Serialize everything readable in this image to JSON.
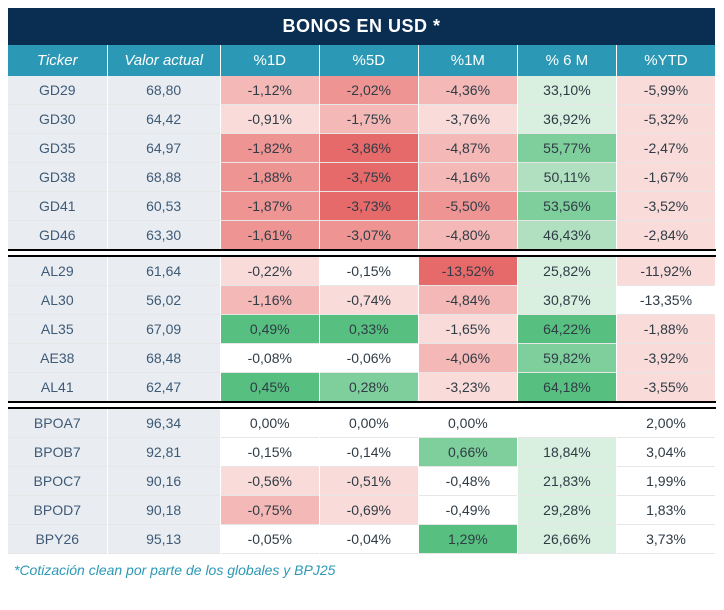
{
  "title": "BONOS EN USD *",
  "footnote": "*Cotización clean por parte de los globales y BPJ25",
  "columns": [
    "Ticker",
    "Valor actual",
    "%1D",
    "%5D",
    "%1M",
    "% 6 M",
    "%YTD"
  ],
  "label_bg": "#e9edf2",
  "label_color": "#3e5a76",
  "title_bg": "#0a2d52",
  "head_bg": "#2b99b5",
  "heat": {
    "neg4": "#e76a6a",
    "neg3": "#ee9593",
    "neg2": "#f4b8b6",
    "neg1": "#f9dcd9",
    "zero": "#ffffff",
    "pos1": "#d9efdf",
    "pos2": "#b0e0c0",
    "pos3": "#7fcf9d",
    "pos4": "#57c080"
  },
  "groups": [
    {
      "rows": [
        {
          "ticker": "GD29",
          "valor": "68,80",
          "cells": [
            {
              "t": "-1,12%",
              "h": "neg2"
            },
            {
              "t": "-2,02%",
              "h": "neg3"
            },
            {
              "t": "-4,36%",
              "h": "neg2"
            },
            {
              "t": "33,10%",
              "h": "pos1"
            },
            {
              "t": "-5,99%",
              "h": "neg1"
            }
          ]
        },
        {
          "ticker": "GD30",
          "valor": "64,42",
          "cells": [
            {
              "t": "-0,91%",
              "h": "neg1"
            },
            {
              "t": "-1,75%",
              "h": "neg2"
            },
            {
              "t": "-3,76%",
              "h": "neg1"
            },
            {
              "t": "36,92%",
              "h": "pos1"
            },
            {
              "t": "-5,32%",
              "h": "neg1"
            }
          ]
        },
        {
          "ticker": "GD35",
          "valor": "64,97",
          "cells": [
            {
              "t": "-1,82%",
              "h": "neg3"
            },
            {
              "t": "-3,86%",
              "h": "neg4"
            },
            {
              "t": "-4,87%",
              "h": "neg2"
            },
            {
              "t": "55,77%",
              "h": "pos3"
            },
            {
              "t": "-2,47%",
              "h": "neg1"
            }
          ]
        },
        {
          "ticker": "GD38",
          "valor": "68,88",
          "cells": [
            {
              "t": "-1,88%",
              "h": "neg3"
            },
            {
              "t": "-3,75%",
              "h": "neg4"
            },
            {
              "t": "-4,16%",
              "h": "neg2"
            },
            {
              "t": "50,11%",
              "h": "pos2"
            },
            {
              "t": "-1,67%",
              "h": "neg1"
            }
          ]
        },
        {
          "ticker": "GD41",
          "valor": "60,53",
          "cells": [
            {
              "t": "-1,87%",
              "h": "neg3"
            },
            {
              "t": "-3,73%",
              "h": "neg4"
            },
            {
              "t": "-5,50%",
              "h": "neg3"
            },
            {
              "t": "53,56%",
              "h": "pos3"
            },
            {
              "t": "-3,52%",
              "h": "neg1"
            }
          ]
        },
        {
          "ticker": "GD46",
          "valor": "63,30",
          "cells": [
            {
              "t": "-1,61%",
              "h": "neg3"
            },
            {
              "t": "-3,07%",
              "h": "neg3"
            },
            {
              "t": "-4,80%",
              "h": "neg2"
            },
            {
              "t": "46,43%",
              "h": "pos2"
            },
            {
              "t": "-2,84%",
              "h": "neg1"
            }
          ]
        }
      ]
    },
    {
      "rows": [
        {
          "ticker": "AL29",
          "valor": "61,64",
          "cells": [
            {
              "t": "-0,22%",
              "h": "neg1"
            },
            {
              "t": "-0,15%",
              "h": "zero"
            },
            {
              "t": "-13,52%",
              "h": "neg4"
            },
            {
              "t": "25,82%",
              "h": "pos1"
            },
            {
              "t": "-11,92%",
              "h": "neg1"
            }
          ]
        },
        {
          "ticker": "AL30",
          "valor": "56,02",
          "cells": [
            {
              "t": "-1,16%",
              "h": "neg2"
            },
            {
              "t": "-0,74%",
              "h": "neg1"
            },
            {
              "t": "-4,84%",
              "h": "neg2"
            },
            {
              "t": "30,87%",
              "h": "pos1"
            },
            {
              "t": "-13,35%",
              "h": "zero"
            }
          ]
        },
        {
          "ticker": "AL35",
          "valor": "67,09",
          "cells": [
            {
              "t": "0,49%",
              "h": "pos4"
            },
            {
              "t": "0,33%",
              "h": "pos4"
            },
            {
              "t": "-1,65%",
              "h": "neg1"
            },
            {
              "t": "64,22%",
              "h": "pos4"
            },
            {
              "t": "-1,88%",
              "h": "neg1"
            }
          ]
        },
        {
          "ticker": "AE38",
          "valor": "68,48",
          "cells": [
            {
              "t": "-0,08%",
              "h": "zero"
            },
            {
              "t": "-0,06%",
              "h": "zero"
            },
            {
              "t": "-4,06%",
              "h": "neg2"
            },
            {
              "t": "59,82%",
              "h": "pos3"
            },
            {
              "t": "-3,92%",
              "h": "neg1"
            }
          ]
        },
        {
          "ticker": "AL41",
          "valor": "62,47",
          "cells": [
            {
              "t": "0,45%",
              "h": "pos4"
            },
            {
              "t": "0,28%",
              "h": "pos3"
            },
            {
              "t": "-3,23%",
              "h": "neg1"
            },
            {
              "t": "64,18%",
              "h": "pos4"
            },
            {
              "t": "-3,55%",
              "h": "neg1"
            }
          ]
        }
      ]
    },
    {
      "rows": [
        {
          "ticker": "BPOA7",
          "valor": "96,34",
          "cells": [
            {
              "t": "0,00%",
              "h": "zero"
            },
            {
              "t": "0,00%",
              "h": "zero"
            },
            {
              "t": "0,00%",
              "h": "zero"
            },
            {
              "t": "",
              "h": "zero"
            },
            {
              "t": "2,00%",
              "h": "zero"
            }
          ]
        },
        {
          "ticker": "BPOB7",
          "valor": "92,81",
          "cells": [
            {
              "t": "-0,15%",
              "h": "zero"
            },
            {
              "t": "-0,14%",
              "h": "zero"
            },
            {
              "t": "0,66%",
              "h": "pos3"
            },
            {
              "t": "18,84%",
              "h": "pos1"
            },
            {
              "t": "3,04%",
              "h": "zero"
            }
          ]
        },
        {
          "ticker": "BPOC7",
          "valor": "90,16",
          "cells": [
            {
              "t": "-0,56%",
              "h": "neg1"
            },
            {
              "t": "-0,51%",
              "h": "neg1"
            },
            {
              "t": "-0,48%",
              "h": "zero"
            },
            {
              "t": "21,83%",
              "h": "pos1"
            },
            {
              "t": "1,99%",
              "h": "zero"
            }
          ]
        },
        {
          "ticker": "BPOD7",
          "valor": "90,18",
          "cells": [
            {
              "t": "-0,75%",
              "h": "neg2"
            },
            {
              "t": "-0,69%",
              "h": "neg1"
            },
            {
              "t": "-0,49%",
              "h": "zero"
            },
            {
              "t": "29,28%",
              "h": "pos1"
            },
            {
              "t": "1,83%",
              "h": "zero"
            }
          ]
        },
        {
          "ticker": "BPY26",
          "valor": "95,13",
          "cells": [
            {
              "t": "-0,05%",
              "h": "zero"
            },
            {
              "t": "-0,04%",
              "h": "zero"
            },
            {
              "t": "1,29%",
              "h": "pos4"
            },
            {
              "t": "26,66%",
              "h": "pos1"
            },
            {
              "t": "3,73%",
              "h": "zero"
            }
          ]
        }
      ]
    }
  ]
}
